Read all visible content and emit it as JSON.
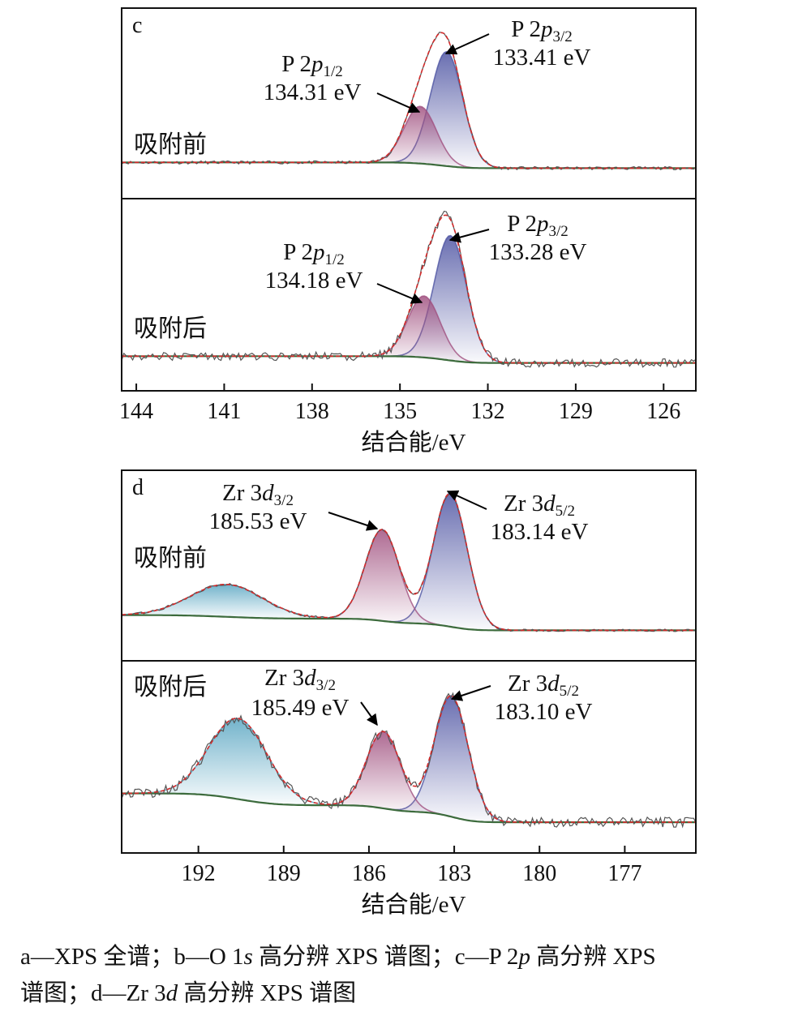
{
  "chart_data": [
    {
      "type": "line",
      "panel_label": "c",
      "xlabel": "结合能/eV",
      "xlim": [
        144.5,
        124.9
      ],
      "xticks": [
        144,
        141,
        138,
        135,
        132,
        129,
        126
      ],
      "tick_labels": [
        "144",
        "141",
        "138",
        "135",
        "132",
        "129",
        "126"
      ],
      "ylim": [
        0,
        100
      ],
      "yunits": "a.u.",
      "subplots": [
        {
          "label": "吸附前",
          "background": [
            19,
            16
          ],
          "noise": 0.8,
          "peaks": [
            {
              "name": "P 2p3/2",
              "element": "P 2",
              "orbital": "p",
              "sub": "3/2",
              "value_label": "133.41 eV",
              "position": 133.41,
              "height": 60,
              "fwhm": 1.3,
              "color": "#4f55a3"
            },
            {
              "name": "P 2p1/2",
              "element": "P 2",
              "orbital": "p",
              "sub": "1/2",
              "value_label": "134.31 eV",
              "position": 134.31,
              "height": 30,
              "fwhm": 1.3,
              "color": "#a0507f"
            }
          ]
        },
        {
          "label": "吸附后",
          "background": [
            18,
            14.5
          ],
          "noise": 2.2,
          "peaks": [
            {
              "name": "P 2p3/2",
              "element": "P 2",
              "orbital": "p",
              "sub": "3/2",
              "value_label": "133.28 eV",
              "position": 133.28,
              "height": 65,
              "fwhm": 1.3,
              "color": "#4f55a3"
            },
            {
              "name": "P 2p1/2",
              "element": "P 2",
              "orbital": "p",
              "sub": "1/2",
              "value_label": "134.18 eV",
              "position": 134.18,
              "height": 32,
              "fwhm": 1.3,
              "color": "#a0507f"
            }
          ]
        }
      ]
    },
    {
      "type": "line",
      "panel_label": "d",
      "xlabel": "结合能/eV",
      "xlim": [
        194.7,
        174.5
      ],
      "xticks": [
        192,
        189,
        186,
        183,
        180,
        177
      ],
      "tick_labels": [
        "192",
        "189",
        "186",
        "183",
        "180",
        "177"
      ],
      "ylim": [
        0,
        100
      ],
      "yunits": "a.u.",
      "subplots": [
        {
          "label": "吸附前",
          "background": [
            24,
            16
          ],
          "noise": 0.6,
          "peaks": [
            {
              "name": "Zr 3d5/2",
              "element": "Zr 3",
              "orbital": "d",
              "sub": "5/2",
              "value_label": "183.14 eV",
              "position": 183.14,
              "height": 70,
              "fwhm": 1.4,
              "color": "#4f55a3"
            },
            {
              "name": "Zr 3d3/2",
              "element": "Zr 3",
              "orbital": "d",
              "sub": "3/2",
              "value_label": "185.53 eV",
              "position": 185.53,
              "height": 48,
              "fwhm": 1.4,
              "color": "#a0507f"
            },
            {
              "name": "unlabeled",
              "position": 191.0,
              "height": 17,
              "fwhm": 3.0,
              "color": "#5aa6c2"
            }
          ]
        },
        {
          "label": "吸附后",
          "background": [
            31,
            16
          ],
          "noise": 2.6,
          "peaks": [
            {
              "name": "Zr 3d5/2",
              "element": "Zr 3",
              "orbital": "d",
              "sub": "5/2",
              "value_label": "183.10 eV",
              "position": 183.1,
              "height": 63,
              "fwhm": 1.4,
              "color": "#4f55a3"
            },
            {
              "name": "Zr 3d3/2",
              "element": "Zr 3",
              "orbital": "d",
              "sub": "3/2",
              "value_label": "185.49 eV",
              "position": 185.49,
              "height": 40,
              "fwhm": 1.4,
              "color": "#a0507f"
            },
            {
              "name": "unlabeled",
              "position": 190.6,
              "height": 42,
              "fwhm": 2.4,
              "color": "#5aa6c2"
            }
          ]
        }
      ]
    }
  ],
  "caption": {
    "line1_a": "a—XPS 全谱；b—O  1",
    "line1_s": "s",
    "line1_b": " 高分辨 XPS 谱图；c—P  2",
    "line1_p": "p",
    "line1_c": " 高分辨 XPS",
    "line2_a": "谱图；d—Zr 3",
    "line2_d": "d",
    "line2_b": " 高分辨 XPS 谱图"
  }
}
